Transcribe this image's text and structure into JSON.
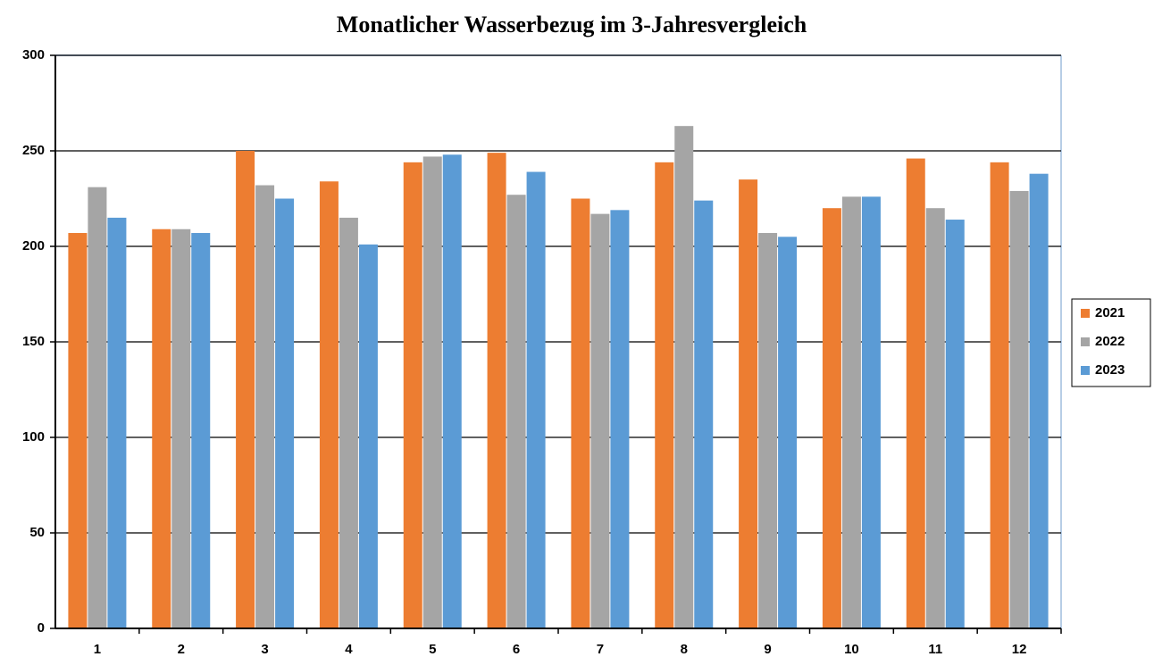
{
  "chart_data": {
    "type": "bar",
    "title": "Monatlicher Wasserbezug im 3-Jahresvergleich",
    "categories": [
      "1",
      "2",
      "3",
      "4",
      "5",
      "6",
      "7",
      "8",
      "9",
      "10",
      "11",
      "12"
    ],
    "series": [
      {
        "name": "2021",
        "color": "#ed7d31",
        "values": [
          207,
          209,
          250,
          234,
          244,
          249,
          225,
          244,
          235,
          220,
          246,
          244
        ]
      },
      {
        "name": "2022",
        "color": "#a5a5a5",
        "values": [
          231,
          209,
          232,
          215,
          247,
          227,
          217,
          263,
          207,
          226,
          220,
          229
        ]
      },
      {
        "name": "2023",
        "color": "#5b9bd5",
        "values": [
          215,
          207,
          225,
          201,
          248,
          239,
          219,
          224,
          205,
          226,
          214,
          238
        ]
      }
    ],
    "ylim": [
      0,
      300
    ],
    "yticks": [
      0,
      50,
      100,
      150,
      200,
      250,
      300
    ],
    "grid": true,
    "legend": "right"
  }
}
